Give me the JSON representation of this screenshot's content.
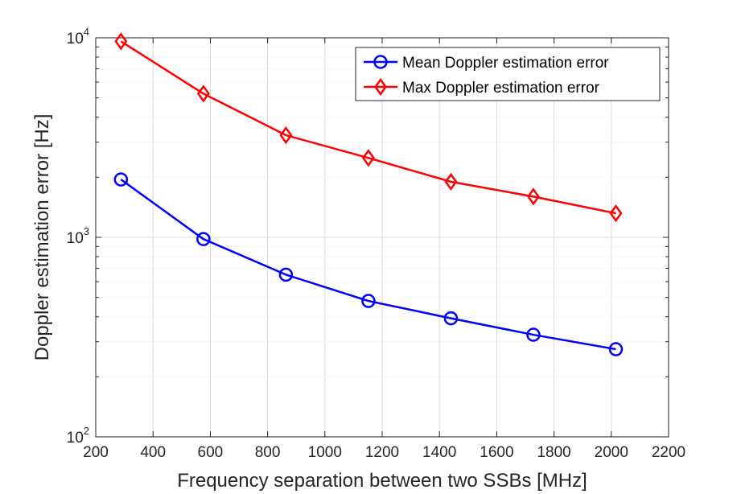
{
  "chart_data": {
    "type": "line",
    "title": "",
    "xlabel": "Frequency separation between two SSBs [MHz]",
    "ylabel": "Doppler estimation error [Hz]",
    "xlim": [
      200,
      2200
    ],
    "ylim": [
      100,
      10000
    ],
    "yscale": "log",
    "grid": true,
    "x_ticks": [
      200,
      400,
      600,
      800,
      1000,
      1200,
      1400,
      1600,
      1800,
      2000,
      2200
    ],
    "y_ticks": [
      {
        "value": 100,
        "base": "10",
        "exp": "2"
      },
      {
        "value": 1000,
        "base": "10",
        "exp": "3"
      },
      {
        "value": 10000,
        "base": "10",
        "exp": "4"
      }
    ],
    "legend_position": "top-right",
    "x": [
      288,
      576,
      864,
      1152,
      1440,
      1728,
      2016
    ],
    "series": [
      {
        "name": "Mean Doppler estimation error",
        "color": "#0000ff",
        "marker": "circle",
        "values": [
          1950,
          980,
          650,
          480,
          393,
          325,
          275
        ]
      },
      {
        "name": "Max Doppler estimation error",
        "color": "#ff0000",
        "marker": "diamond",
        "values": [
          9600,
          5250,
          3250,
          2500,
          1900,
          1600,
          1320
        ]
      }
    ]
  }
}
